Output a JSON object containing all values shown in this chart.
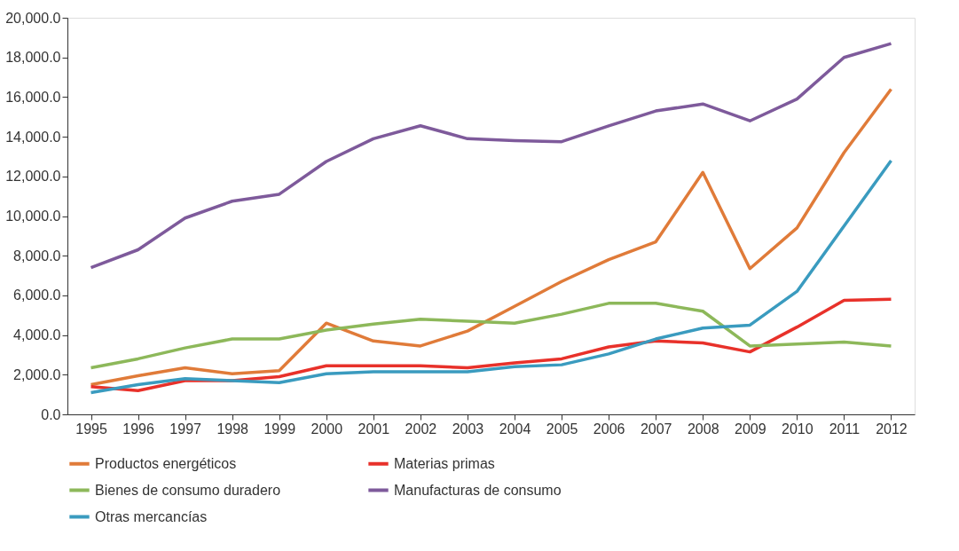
{
  "chart_data": {
    "type": "line",
    "categories": [
      "1995",
      "1996",
      "1997",
      "1998",
      "1999",
      "2000",
      "2001",
      "2002",
      "2003",
      "2004",
      "2005",
      "2006",
      "2007",
      "2008",
      "2009",
      "2010",
      "2011",
      "2012"
    ],
    "ylim": [
      0,
      20000
    ],
    "yticks": [
      {
        "value": 0,
        "label": "0.0"
      },
      {
        "value": 2000,
        "label": "2,000.0"
      },
      {
        "value": 4000,
        "label": "4,000.0"
      },
      {
        "value": 6000,
        "label": "6,000.0"
      },
      {
        "value": 8000,
        "label": "8,000.0"
      },
      {
        "value": 10000,
        "label": "10,000.0"
      },
      {
        "value": 12000,
        "label": "12,000.0"
      },
      {
        "value": 14000,
        "label": "14,000.0"
      },
      {
        "value": 16000,
        "label": "16,000.0"
      },
      {
        "value": 18000,
        "label": "18,000.0"
      },
      {
        "value": 20000,
        "label": "20,000.0"
      }
    ],
    "grid": false,
    "legend": "bottom",
    "marker": "none",
    "line_style": "solid",
    "series": [
      {
        "name": "Productos energéticos",
        "color": "#e07b39",
        "values": [
          1500,
          1950,
          2350,
          2050,
          2200,
          4600,
          3700,
          3450,
          4200,
          5450,
          6700,
          7800,
          8700,
          12200,
          7350,
          9400,
          13200,
          16400
        ]
      },
      {
        "name": "Materias primas",
        "color": "#e8312a",
        "values": [
          1400,
          1200,
          1700,
          1700,
          1900,
          2450,
          2450,
          2450,
          2350,
          2600,
          2800,
          3400,
          3700,
          3600,
          3150,
          4400,
          5750,
          5800
        ]
      },
      {
        "name": "Bienes de consumo duradero",
        "color": "#8db85a",
        "values": [
          2350,
          2800,
          3350,
          3800,
          3800,
          4250,
          4550,
          4800,
          4700,
          4600,
          5050,
          5600,
          5600,
          5200,
          3450,
          3550,
          3650,
          3450
        ]
      },
      {
        "name": "Manufacturas de consumo",
        "color": "#7e5a9b",
        "values": [
          7400,
          8300,
          9900,
          10750,
          11100,
          12750,
          13900,
          14550,
          13900,
          13800,
          13750,
          14550,
          15300,
          15650,
          14800,
          15900,
          18000,
          18700
        ]
      },
      {
        "name": "Otras mercancías",
        "color": "#3a9bbf",
        "values": [
          1100,
          1500,
          1800,
          1700,
          1600,
          2050,
          2150,
          2150,
          2150,
          2400,
          2500,
          3050,
          3800,
          4350,
          4500,
          6200,
          9500,
          12800
        ]
      }
    ]
  }
}
